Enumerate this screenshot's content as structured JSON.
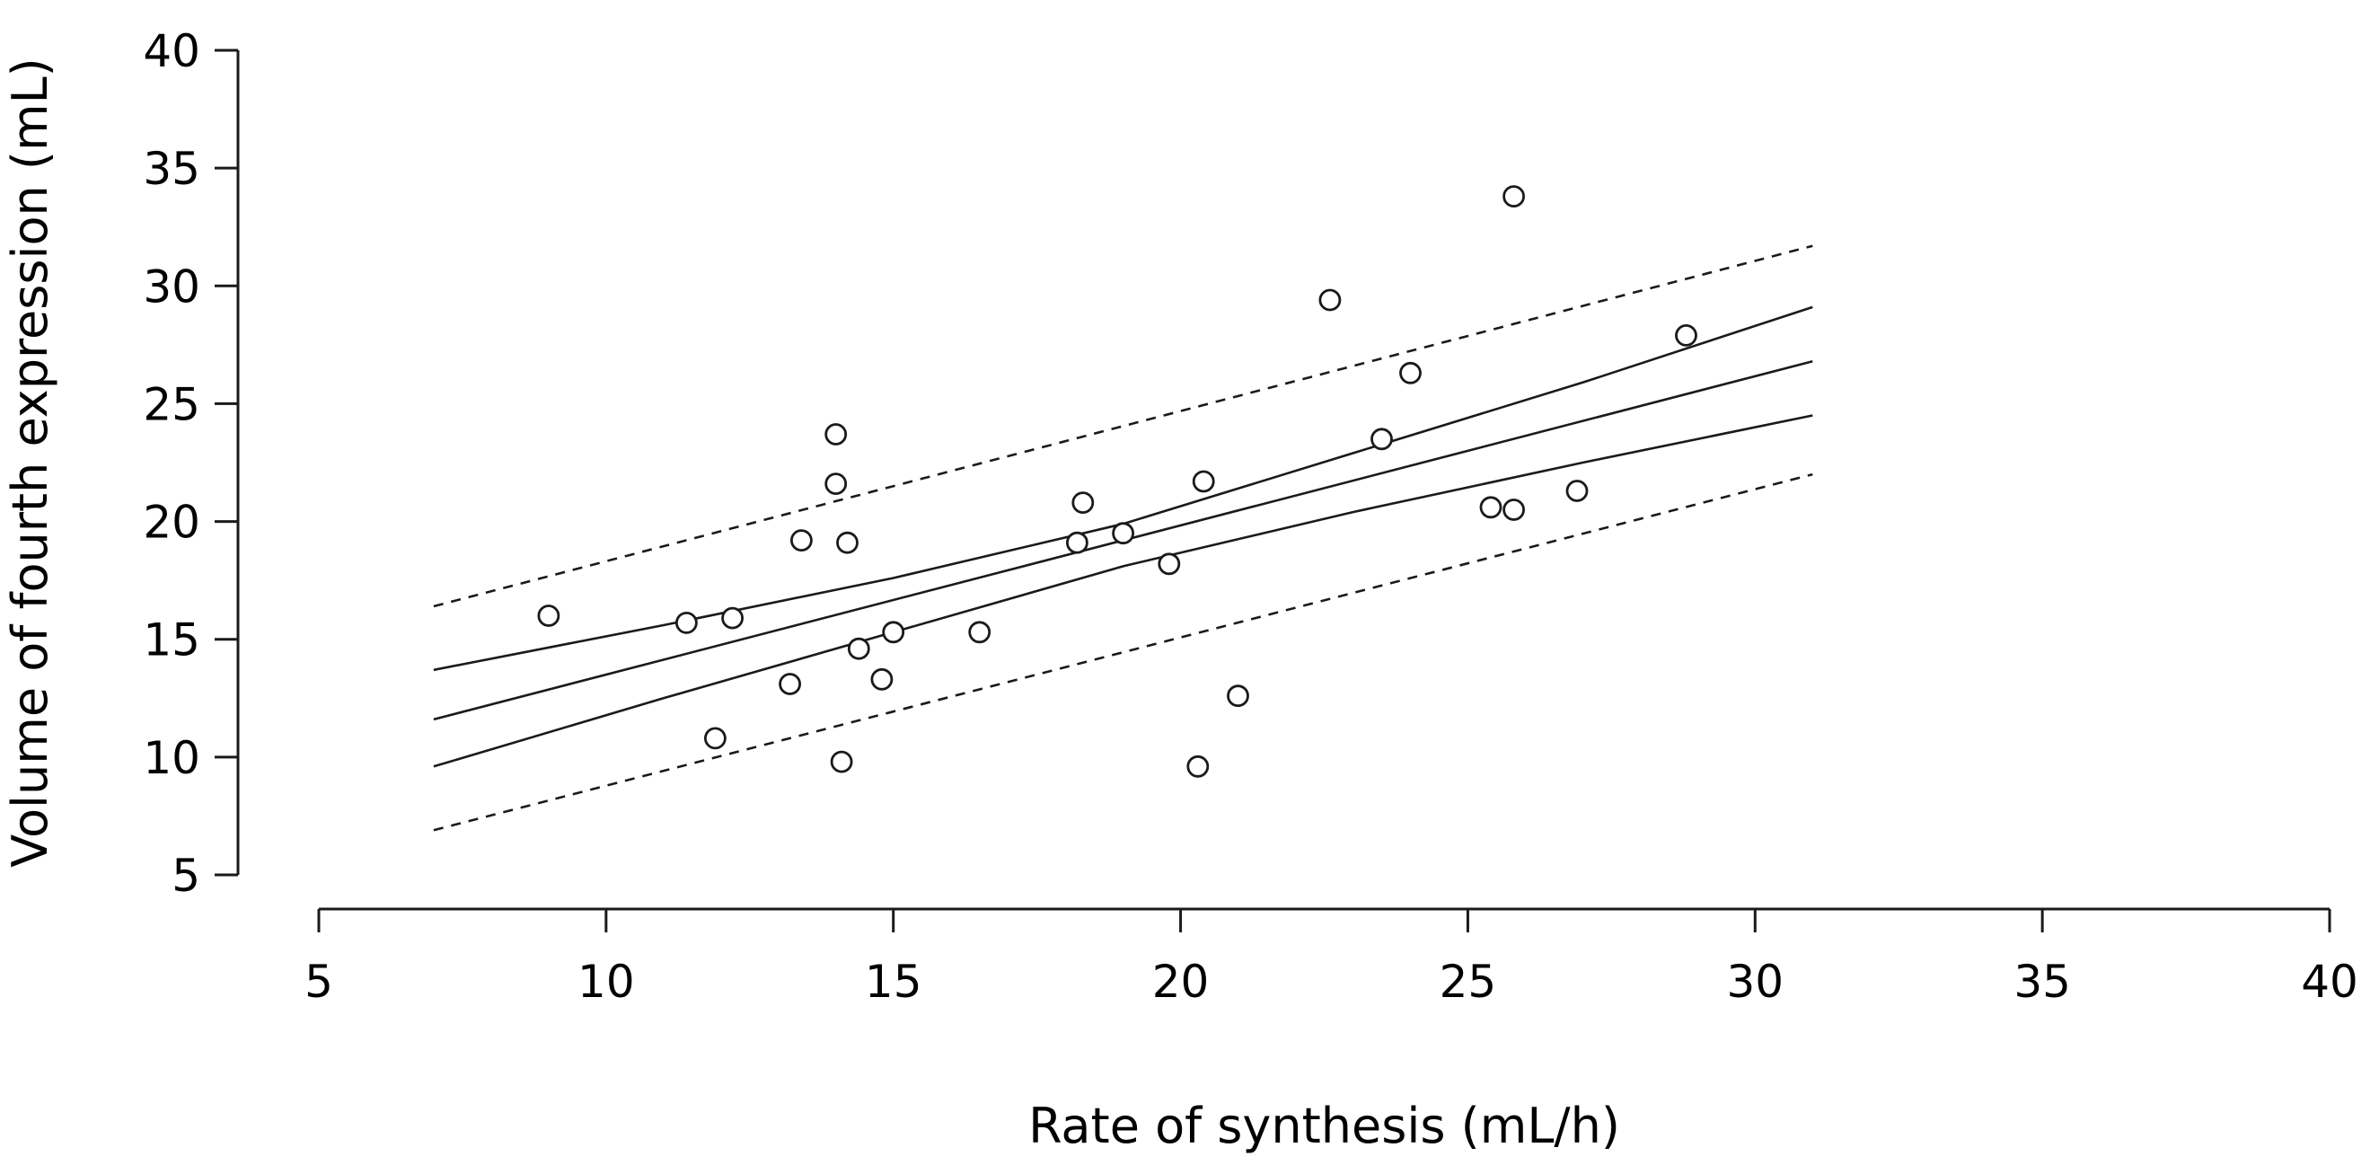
{
  "chart_data": {
    "type": "scatter",
    "title": "",
    "xlabel": "Rate of synthesis (mL/h)",
    "ylabel": "Volume of fourth expression (mL)",
    "xlim": [
      5,
      40
    ],
    "ylim": [
      5,
      40
    ],
    "x_ticks": [
      5,
      10,
      15,
      20,
      25,
      30,
      35,
      40
    ],
    "y_ticks": [
      5,
      10,
      15,
      20,
      25,
      30,
      35,
      40
    ],
    "x_tick_labels": [
      "5",
      "10",
      "15",
      "20",
      "25",
      "30",
      "35",
      "40"
    ],
    "y_tick_labels": [
      "5",
      "10",
      "15",
      "20",
      "25",
      "30",
      "35",
      "40"
    ],
    "grid": false,
    "points": [
      {
        "x": 9.0,
        "y": 16.0
      },
      {
        "x": 11.4,
        "y": 15.7
      },
      {
        "x": 11.9,
        "y": 10.8
      },
      {
        "x": 12.2,
        "y": 15.9
      },
      {
        "x": 13.2,
        "y": 13.1
      },
      {
        "x": 13.4,
        "y": 19.2
      },
      {
        "x": 14.0,
        "y": 23.7
      },
      {
        "x": 14.0,
        "y": 21.6
      },
      {
        "x": 14.1,
        "y": 9.8
      },
      {
        "x": 14.2,
        "y": 19.1
      },
      {
        "x": 14.4,
        "y": 14.6
      },
      {
        "x": 14.8,
        "y": 13.3
      },
      {
        "x": 15.0,
        "y": 15.3
      },
      {
        "x": 16.5,
        "y": 15.3
      },
      {
        "x": 18.2,
        "y": 19.1
      },
      {
        "x": 18.3,
        "y": 20.8
      },
      {
        "x": 19.0,
        "y": 19.5
      },
      {
        "x": 19.8,
        "y": 18.2
      },
      {
        "x": 20.3,
        "y": 9.6
      },
      {
        "x": 20.4,
        "y": 21.7
      },
      {
        "x": 21.0,
        "y": 12.6
      },
      {
        "x": 22.6,
        "y": 29.4
      },
      {
        "x": 23.5,
        "y": 23.5
      },
      {
        "x": 24.0,
        "y": 26.3
      },
      {
        "x": 25.4,
        "y": 20.6
      },
      {
        "x": 25.8,
        "y": 33.8
      },
      {
        "x": 25.8,
        "y": 20.5
      },
      {
        "x": 26.9,
        "y": 21.3
      },
      {
        "x": 28.8,
        "y": 27.9
      }
    ],
    "lines": [
      {
        "name": "regression",
        "style": "solid",
        "x": [
          7,
          31
        ],
        "y": [
          11.6,
          26.8
        ]
      },
      {
        "name": "confidence-upper",
        "style": "solid",
        "x": [
          7,
          11,
          15,
          19,
          23,
          27,
          31
        ],
        "y": [
          13.7,
          15.6,
          17.6,
          19.9,
          22.9,
          25.9,
          29.1
        ]
      },
      {
        "name": "confidence-lower",
        "style": "solid",
        "x": [
          7,
          11,
          15,
          19,
          23,
          27,
          31
        ],
        "y": [
          9.6,
          12.5,
          15.3,
          18.1,
          20.4,
          22.5,
          24.5
        ]
      },
      {
        "name": "prediction-upper",
        "style": "dashed",
        "x": [
          7,
          31
        ],
        "y": [
          16.4,
          31.7
        ]
      },
      {
        "name": "prediction-lower",
        "style": "dashed",
        "x": [
          7,
          31
        ],
        "y": [
          6.9,
          22.0
        ]
      }
    ]
  }
}
